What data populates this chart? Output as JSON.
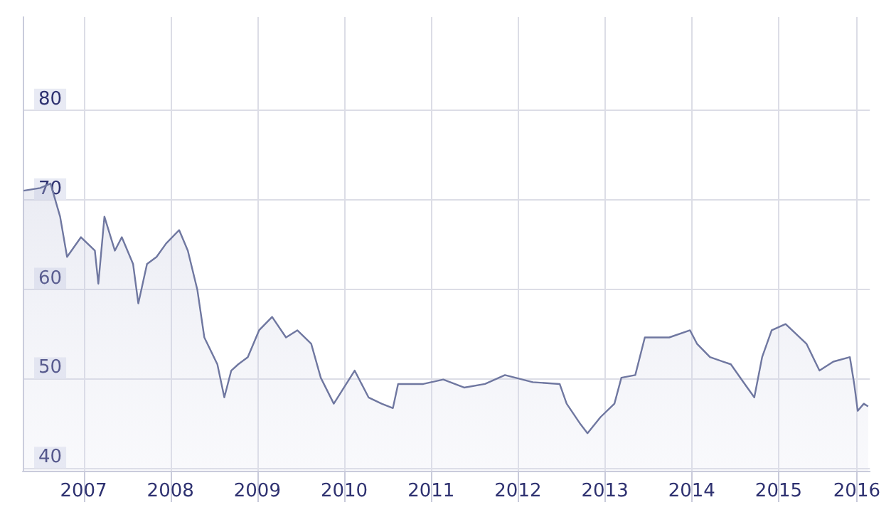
{
  "chart_data": {
    "type": "area",
    "x": [
      2006.71,
      2006.9,
      2007.02,
      2007.13,
      2007.21,
      2007.37,
      2007.53,
      2007.57,
      2007.64,
      2007.76,
      2007.84,
      2007.97,
      2008.03,
      2008.13,
      2008.24,
      2008.35,
      2008.5,
      2008.6,
      2008.71,
      2008.79,
      2008.94,
      2009.02,
      2009.1,
      2009.18,
      2009.29,
      2009.42,
      2009.57,
      2009.73,
      2009.86,
      2010.02,
      2010.13,
      2010.28,
      2010.52,
      2010.68,
      2010.83,
      2010.96,
      2011.02,
      2011.31,
      2011.54,
      2011.78,
      2012.02,
      2012.25,
      2012.57,
      2012.88,
      2012.96,
      2013.12,
      2013.2,
      2013.35,
      2013.51,
      2013.59,
      2013.75,
      2013.86,
      2014.14,
      2014.38,
      2014.46,
      2014.61,
      2014.85,
      2015.01,
      2015.12,
      2015.21,
      2015.32,
      2015.48,
      2015.72,
      2015.87,
      2016.03,
      2016.22,
      2016.27,
      2016.31,
      2016.38,
      2016.43
    ],
    "series": [
      {
        "color": "#6f77a0",
        "values": [
          71.0,
          71.3,
          71.8,
          68.1,
          63.6,
          65.8,
          64.3,
          60.6,
          68.1,
          64.3,
          65.8,
          62.8,
          58.4,
          62.8,
          63.6,
          65.1,
          66.6,
          64.3,
          59.9,
          54.6,
          51.6,
          47.9,
          50.9,
          51.6,
          52.4,
          55.4,
          56.9,
          54.6,
          55.4,
          53.9,
          50.1,
          47.2,
          50.9,
          47.9,
          47.2,
          46.7,
          49.4,
          49.4,
          49.9,
          49.0,
          49.4,
          50.4,
          49.6,
          49.4,
          47.2,
          44.9,
          43.9,
          45.7,
          47.2,
          50.1,
          50.4,
          54.6,
          54.6,
          55.4,
          53.9,
          52.4,
          51.6,
          49.4,
          47.9,
          52.4,
          55.4,
          56.1,
          53.9,
          50.9,
          51.9,
          52.4,
          49.4,
          46.4,
          47.2,
          46.9
        ]
      }
    ],
    "xlim": [
      2006.7,
      2016.45
    ],
    "xticks": [
      {
        "value": 2007.4,
        "label": "2007"
      },
      {
        "value": 2008.4,
        "label": "2008"
      },
      {
        "value": 2009.4,
        "label": "2009"
      },
      {
        "value": 2010.4,
        "label": "2010"
      },
      {
        "value": 2011.4,
        "label": "2011"
      },
      {
        "value": 2012.4,
        "label": "2012"
      },
      {
        "value": 2013.4,
        "label": "2013"
      },
      {
        "value": 2014.4,
        "label": "2014"
      },
      {
        "value": 2015.4,
        "label": "2015"
      },
      {
        "value": 2016.3,
        "label": "2016"
      }
    ],
    "ylim": [
      39.7,
      90.4
    ],
    "yticks": [
      40,
      50,
      60,
      70,
      80
    ],
    "grid": true
  }
}
